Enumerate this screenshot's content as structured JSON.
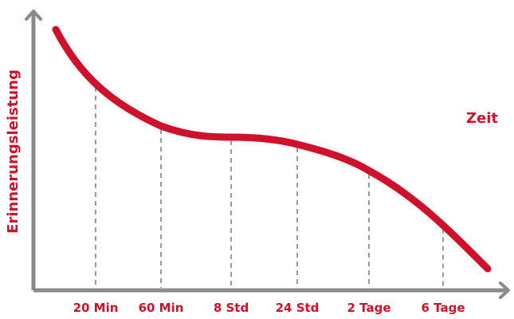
{
  "chart_data": {
    "type": "line",
    "title": "",
    "xlabel": "Zeit",
    "ylabel": "Erinnerungsleistung",
    "categories": [
      "20 Min",
      "60 Min",
      "8 Std",
      "24 Std",
      "2 Tage",
      "6 Tage"
    ],
    "grid": "vertical dashed lines at each tick",
    "legend": "none",
    "colors": {
      "curve": "#d0112b",
      "labels": "#d0112b",
      "axis": "#8a8a8a",
      "grid": "#9a9a9a"
    }
  }
}
